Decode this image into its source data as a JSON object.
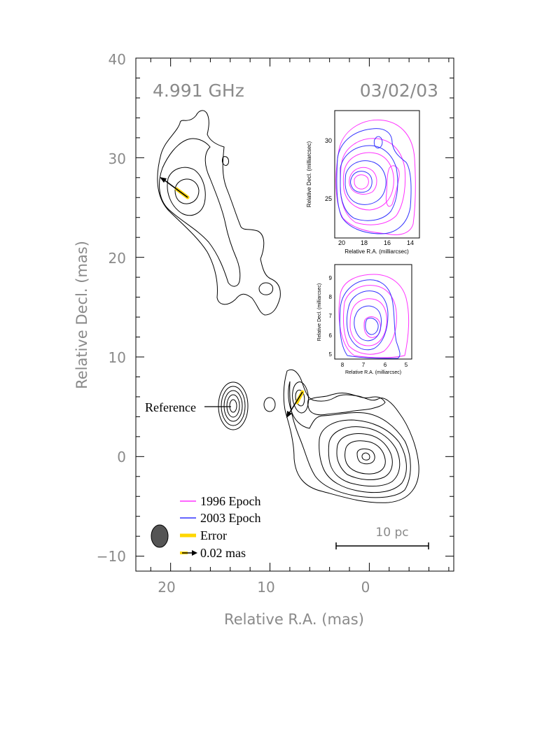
{
  "chart_data": [
    {
      "type": "contour",
      "frequency_label": "4.991 GHz",
      "date_label": "03/02/03",
      "xlabel": "Relative R.A. (mas)",
      "ylabel": "Relative Decl. (mas)",
      "xlim": [
        23.5,
        -8.5
      ],
      "ylim": [
        -11.5,
        40
      ],
      "x_ticks": [
        "20",
        "10",
        "0"
      ],
      "y_ticks": [
        "40",
        "30",
        "20",
        "10",
        "0",
        "−10"
      ],
      "reference_label": "Reference",
      "scale_bar_label": "10 pc",
      "legend": [
        {
          "label": "1996 Epoch",
          "color": "#ff33ff",
          "kind": "line"
        },
        {
          "label": "2003 Epoch",
          "color": "#3333ff",
          "kind": "line"
        },
        {
          "label": "Error",
          "color": "#ffd700",
          "kind": "thick-line"
        },
        {
          "label": "0.02 mas",
          "color": "#000000",
          "kind": "arrow"
        }
      ],
      "components": [
        {
          "name": "northern component",
          "x": 18,
          "y": 26.3,
          "motion_arrow": "toward upper-left"
        },
        {
          "name": "reference",
          "x": 13.5,
          "y": 5
        },
        {
          "name": "moving component",
          "x": 7,
          "y": 6.4,
          "motion_arrow": "toward lower-left"
        },
        {
          "name": "core",
          "x": 0,
          "y": 0
        }
      ],
      "beam_color": "#555555"
    },
    {
      "type": "contour",
      "inset": "upper",
      "xlabel": "Relative R.A. (milliarcsec)",
      "ylabel": "Relative Decl. (milliarcsec)",
      "x_ticks": [
        "20",
        "18",
        "16",
        "14"
      ],
      "y_ticks": [
        "30",
        "25"
      ],
      "series": [
        {
          "name": "1996 Epoch",
          "color": "#ff33ff"
        },
        {
          "name": "2003 Epoch",
          "color": "#3333ff"
        }
      ]
    },
    {
      "type": "contour",
      "inset": "lower",
      "xlabel": "Relative R.A. (milliarcsec)",
      "ylabel": "Relative Decl. (milliarcsec)",
      "x_ticks": [
        "8",
        "7",
        "6",
        "5"
      ],
      "y_ticks": [
        "9",
        "8",
        "7",
        "6",
        "5"
      ],
      "series": [
        {
          "name": "1996 Epoch",
          "color": "#ff33ff"
        },
        {
          "name": "2003 Epoch",
          "color": "#3333ff"
        }
      ]
    }
  ]
}
